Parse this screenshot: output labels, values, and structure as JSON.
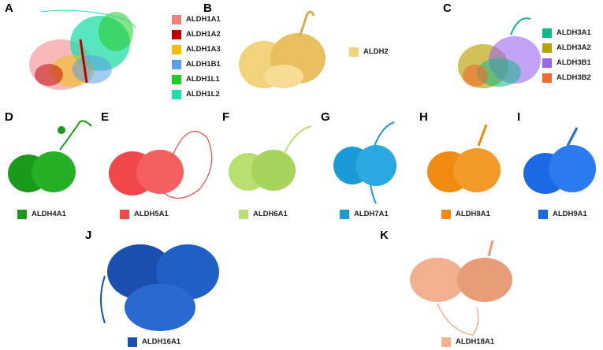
{
  "panels": {
    "A": {
      "label": "A",
      "legend": [
        {
          "name": "ALDH1A1",
          "color": "#f08080"
        },
        {
          "name": "ALDH1A2",
          "color": "#c00000"
        },
        {
          "name": "ALDH1A3",
          "color": "#f0c000"
        },
        {
          "name": "ALDH1B1",
          "color": "#5aa0e6"
        },
        {
          "name": "ALDH1L1",
          "color": "#22cc22"
        },
        {
          "name": "ALDH1L2",
          "color": "#22ddaa"
        }
      ]
    },
    "B": {
      "label": "B",
      "legend": [
        {
          "name": "ALDH2",
          "color": "#f2d27a"
        }
      ]
    },
    "C": {
      "label": "C",
      "legend": [
        {
          "name": "ALDH3A1",
          "color": "#14b88a"
        },
        {
          "name": "ALDH3A2",
          "color": "#b8a000"
        },
        {
          "name": "ALDH3B1",
          "color": "#9966ee"
        },
        {
          "name": "ALDH3B2",
          "color": "#f26a2e"
        }
      ]
    },
    "D": {
      "label": "D",
      "legend": [
        {
          "name": "ALDH4A1",
          "color": "#1a9a1a"
        }
      ]
    },
    "E": {
      "label": "E",
      "legend": [
        {
          "name": "ALDH5A1",
          "color": "#f04848"
        }
      ]
    },
    "F": {
      "label": "F",
      "legend": [
        {
          "name": "ALDH6A1",
          "color": "#b8e070"
        }
      ]
    },
    "G": {
      "label": "G",
      "legend": [
        {
          "name": "ALDH7A1",
          "color": "#1a9ad6"
        }
      ]
    },
    "H": {
      "label": "H",
      "legend": [
        {
          "name": "ALDH8A1",
          "color": "#f08a10"
        }
      ]
    },
    "I": {
      "label": "I",
      "legend": [
        {
          "name": "ALDH9A1",
          "color": "#1a6ae6"
        }
      ]
    },
    "J": {
      "label": "J",
      "legend": [
        {
          "name": "ALDH16A1",
          "color": "#1a4fb0"
        }
      ]
    },
    "K": {
      "label": "K",
      "legend": [
        {
          "name": "ALDH18A1",
          "color": "#f2b090"
        }
      ]
    }
  }
}
